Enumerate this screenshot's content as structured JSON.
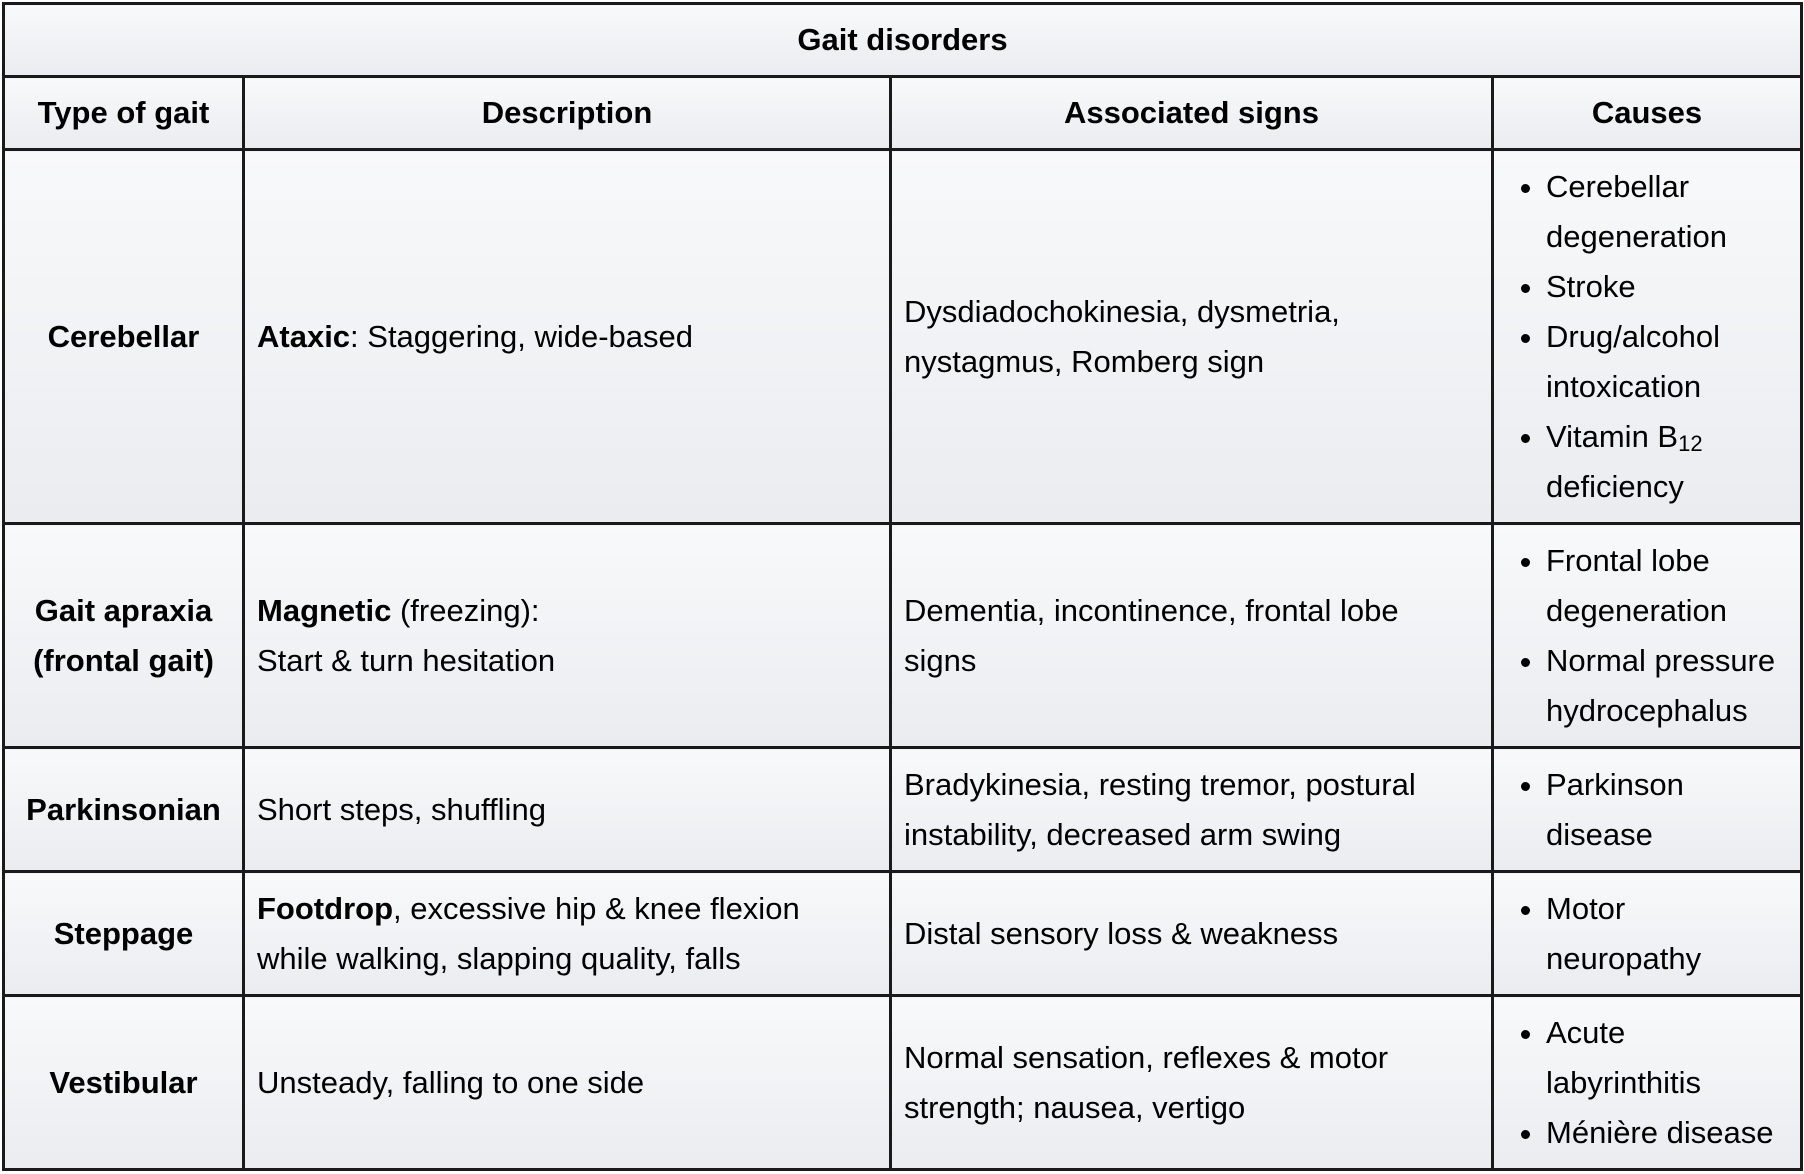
{
  "table": {
    "caption": "Gait disorders",
    "headers": [
      "Type of gait",
      "Description",
      "Associated signs",
      "Causes"
    ],
    "rows": [
      {
        "type": "Cerebellar",
        "description_bold": "Ataxic",
        "description_rest": ": Staggering, wide-based",
        "signs": "Dysdiadochokinesia, dysmetria, nystagmus, Romberg sign",
        "causes": [
          "Cerebellar degeneration",
          "Stroke",
          "Drug/alcohol intoxication",
          "Vitamin B",
          "deficiency"
        ],
        "cause_subscript": "12"
      },
      {
        "type": "Gait apraxia (frontal gait)",
        "description_bold": "Magnetic",
        "description_rest": " (freezing):",
        "description_line2": "Start & turn hesitation",
        "signs": "Dementia, incontinence, frontal lobe signs",
        "causes": [
          "Frontal lobe degeneration",
          "Normal pressure hydrocephalus"
        ]
      },
      {
        "type": "Parkinsonian",
        "description": "Short steps, shuffling",
        "signs": "Bradykinesia, resting tremor, postural instability, decreased arm swing",
        "causes": [
          "Parkinson disease"
        ]
      },
      {
        "type": "Steppage",
        "description_bold": "Footdrop",
        "description_rest": ", excessive hip & knee flexion while walking, slapping quality, falls",
        "signs": "Distal sensory loss & weakness",
        "causes": [
          "Motor neuropathy"
        ]
      },
      {
        "type": "Vestibular",
        "description": "Unsteady, falling to one side",
        "signs": "Normal sensation, reflexes & motor strength; nausea, vertigo",
        "causes": [
          "Acute labyrinthitis",
          "Ménière disease"
        ]
      }
    ]
  }
}
